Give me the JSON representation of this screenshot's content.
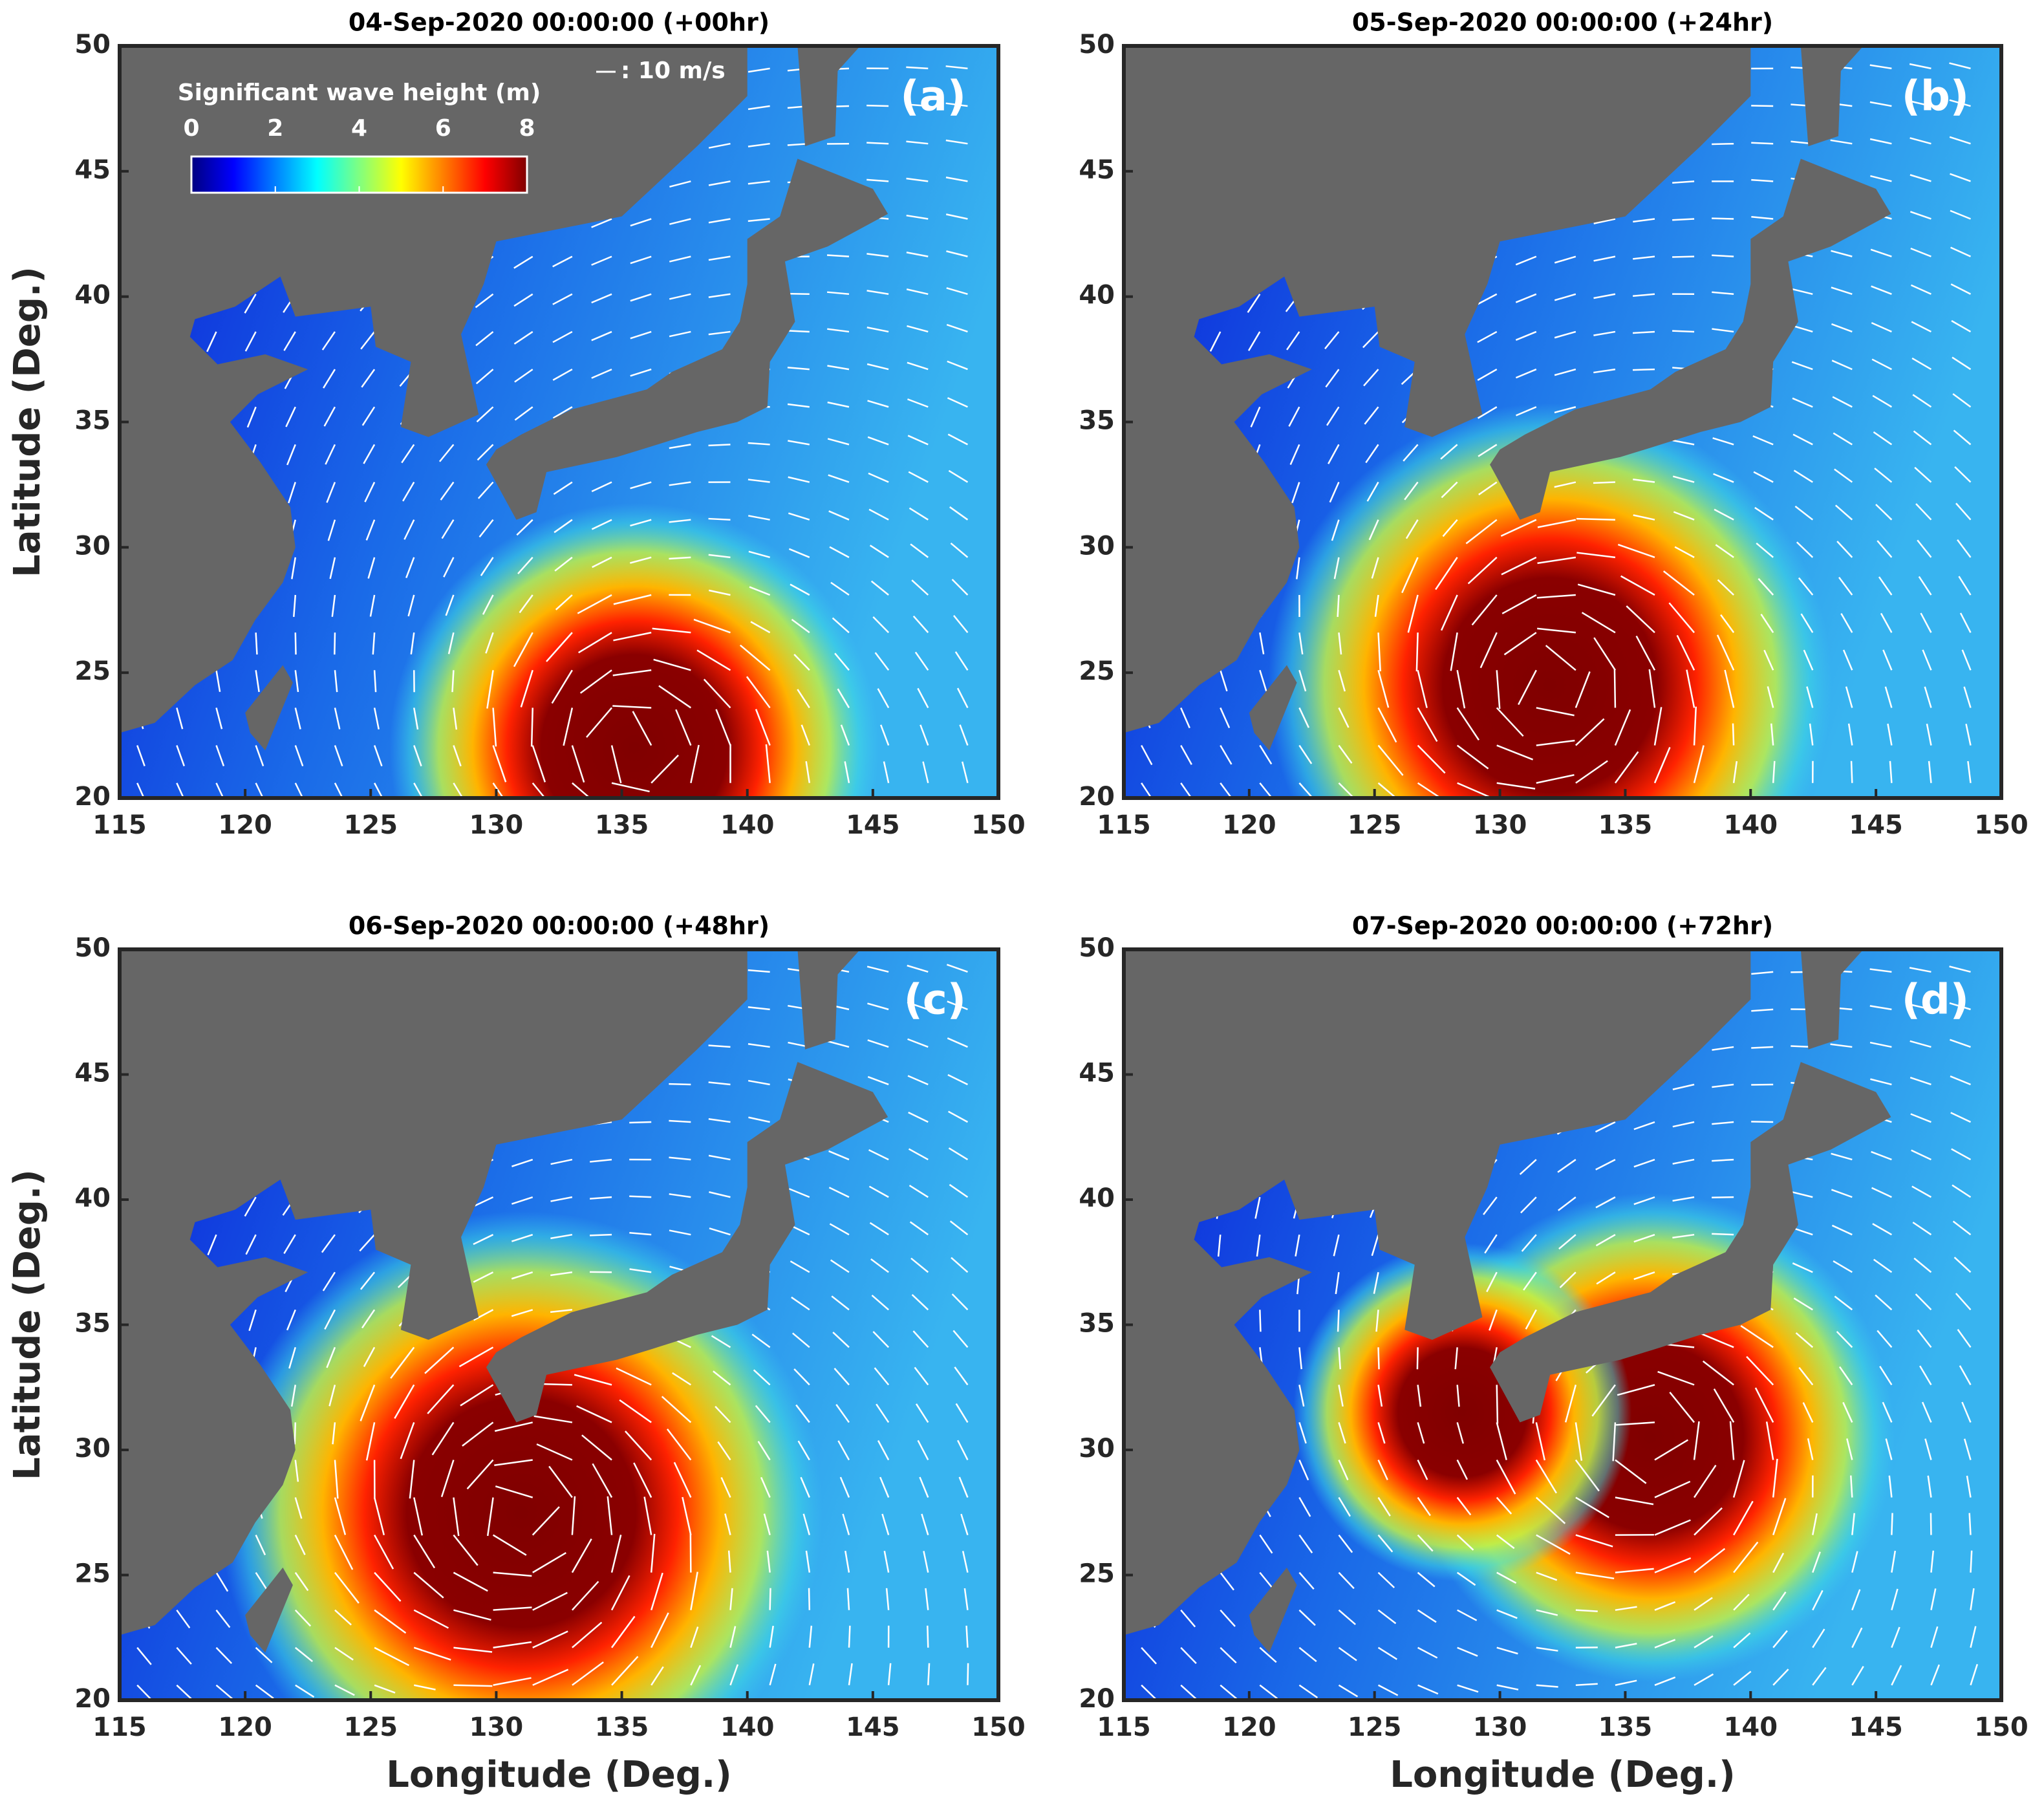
{
  "panels": [
    {
      "title": "04-Sep-2020 00:00:00 (+00hr)",
      "label": "(a)"
    },
    {
      "title": "05-Sep-2020 00:00:00 (+24hr)",
      "label": "(b)"
    },
    {
      "title": "06-Sep-2020 00:00:00 (+48hr)",
      "label": "(c)"
    },
    {
      "title": "07-Sep-2020 00:00:00 (+72hr)",
      "label": "(d)"
    }
  ],
  "axes": {
    "xlabel": "Longitude (Deg.)",
    "ylabel": "Latitude (Deg.)",
    "xlim": [
      115,
      150
    ],
    "ylim": [
      20,
      50
    ],
    "xticks": [
      115,
      120,
      125,
      130,
      135,
      140,
      145,
      150
    ],
    "yticks": [
      20,
      25,
      30,
      35,
      40,
      45,
      50
    ]
  },
  "colorbar": {
    "title": "Significant wave height (m)",
    "lim": [
      0,
      8
    ],
    "ticks": [
      0,
      2,
      4,
      6,
      8
    ]
  },
  "vector_scale": ": 10 m/s"
}
